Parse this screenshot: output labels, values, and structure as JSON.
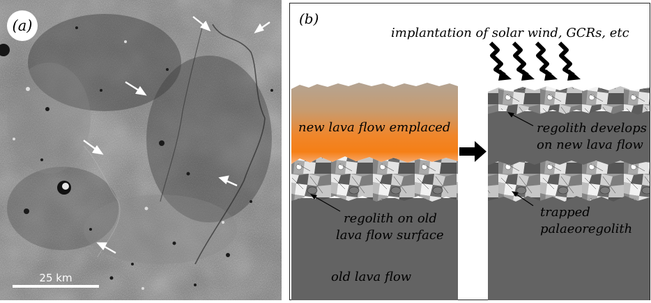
{
  "panel_a": {
    "label": "(a)",
    "scale_bar_label": "25 km"
  },
  "panel_b": {
    "label": "(b)",
    "implantation_label": "implantation of solar wind, GCRs, etc",
    "new_lava_label": "new lava flow emplaced",
    "regolith_old_line1": "regolith on old",
    "regolith_old_line2": "lava flow surface",
    "old_lava_label": "old lava flow",
    "regolith_develops_line1": "regolith develops",
    "regolith_develops_line2": "on new lava flow",
    "trapped_line1": "trapped",
    "trapped_line2": "palaeoregolith"
  },
  "colors": {
    "lava_grey": "#636363",
    "new_lava_top": "#b6a595",
    "new_lava_orange": "#f57f16",
    "panel_border": "#222222"
  }
}
